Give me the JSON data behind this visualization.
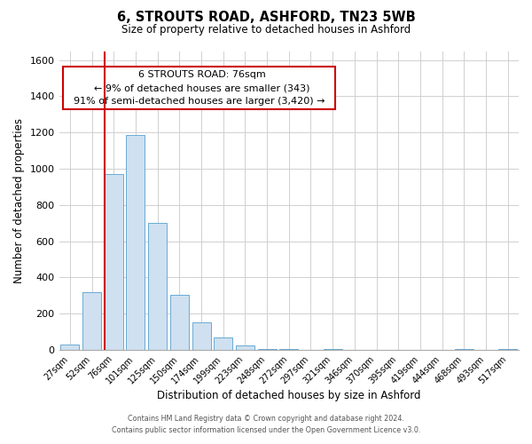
{
  "title": "6, STROUTS ROAD, ASHFORD, TN23 5WB",
  "subtitle": "Size of property relative to detached houses in Ashford",
  "xlabel": "Distribution of detached houses by size in Ashford",
  "ylabel": "Number of detached properties",
  "bar_color": "#cfe0f0",
  "bar_edge_color": "#6aaad4",
  "categories": [
    "27sqm",
    "52sqm",
    "76sqm",
    "101sqm",
    "125sqm",
    "150sqm",
    "174sqm",
    "199sqm",
    "223sqm",
    "248sqm",
    "272sqm",
    "297sqm",
    "321sqm",
    "346sqm",
    "370sqm",
    "395sqm",
    "419sqm",
    "444sqm",
    "468sqm",
    "493sqm",
    "517sqm"
  ],
  "values": [
    30,
    320,
    970,
    1185,
    700,
    305,
    150,
    70,
    25,
    5,
    5,
    0,
    5,
    0,
    0,
    0,
    0,
    0,
    5,
    0,
    5
  ],
  "marker_index": 2,
  "marker_color": "#cc0000",
  "ylim": [
    0,
    1650
  ],
  "yticks": [
    0,
    200,
    400,
    600,
    800,
    1000,
    1200,
    1400,
    1600
  ],
  "annotation_title": "6 STROUTS ROAD: 76sqm",
  "annotation_line1": "← 9% of detached houses are smaller (343)",
  "annotation_line2": "91% of semi-detached houses are larger (3,420) →",
  "annotation_box_color": "#ffffff",
  "annotation_box_edge": "#cc0000",
  "footer1": "Contains HM Land Registry data © Crown copyright and database right 2024.",
  "footer2": "Contains public sector information licensed under the Open Government Licence v3.0.",
  "background_color": "#ffffff",
  "grid_color": "#d0d0d0"
}
